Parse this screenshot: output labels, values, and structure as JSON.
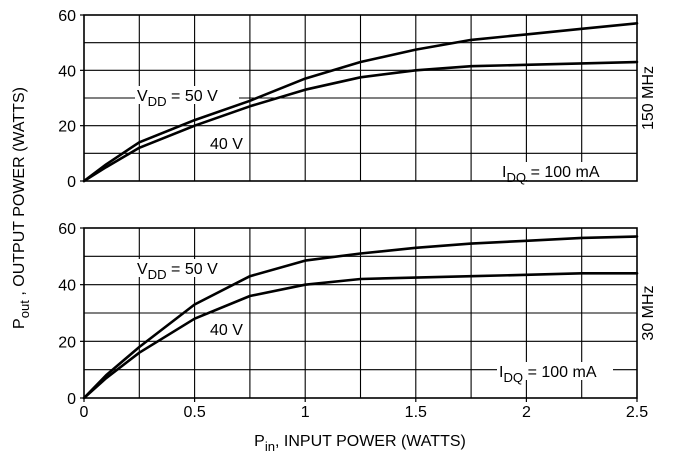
{
  "chart_data": [
    {
      "type": "line",
      "xlim": [
        0,
        2.5
      ],
      "ylim": [
        0,
        60
      ],
      "yticks": [
        "0",
        "20",
        "40",
        "60"
      ],
      "grid": true,
      "side_label": "150 MHz",
      "condition": {
        "main": "I",
        "sub": "DQ",
        "rest": " = 100 mA"
      },
      "series": [
        {
          "name": "V_DD = 50 V",
          "label": {
            "main": "V",
            "sub": "DD",
            "rest": " = 50 V"
          },
          "points": [
            [
              0,
              0
            ],
            [
              0.1,
              6
            ],
            [
              0.25,
              14
            ],
            [
              0.5,
              22
            ],
            [
              0.75,
              29
            ],
            [
              1,
              37
            ],
            [
              1.25,
              43
            ],
            [
              1.5,
              47.5
            ],
            [
              1.75,
              51
            ],
            [
              2,
              53
            ],
            [
              2.25,
              55
            ],
            [
              2.5,
              57
            ]
          ]
        },
        {
          "name": "40 V",
          "label": {
            "main": "40 V",
            "sub": "",
            "rest": ""
          },
          "points": [
            [
              0,
              0
            ],
            [
              0.1,
              5
            ],
            [
              0.25,
              12
            ],
            [
              0.5,
              20
            ],
            [
              0.75,
              27
            ],
            [
              1,
              33
            ],
            [
              1.25,
              37.5
            ],
            [
              1.5,
              40
            ],
            [
              1.75,
              41.5
            ],
            [
              2,
              42
            ],
            [
              2.25,
              42.5
            ],
            [
              2.5,
              43
            ]
          ]
        }
      ]
    },
    {
      "type": "line",
      "xlim": [
        0,
        2.5
      ],
      "ylim": [
        0,
        60
      ],
      "yticks": [
        "0",
        "20",
        "40",
        "60"
      ],
      "xticks": [
        "0",
        "0.5",
        "1",
        "1.5",
        "2",
        "2.5"
      ],
      "grid": true,
      "side_label": "30 MHz",
      "condition": {
        "main": "I",
        "sub": "DQ",
        "rest": " = 100 mA"
      },
      "series": [
        {
          "name": "V_DD = 50 V",
          "label": {
            "main": "V",
            "sub": "DD",
            "rest": " = 50 V"
          },
          "points": [
            [
              0,
              0
            ],
            [
              0.1,
              8
            ],
            [
              0.25,
              18
            ],
            [
              0.5,
              33
            ],
            [
              0.75,
              43
            ],
            [
              1,
              48.5
            ],
            [
              1.25,
              51
            ],
            [
              1.5,
              53
            ],
            [
              1.75,
              54.5
            ],
            [
              2,
              55.5
            ],
            [
              2.25,
              56.5
            ],
            [
              2.5,
              57
            ]
          ]
        },
        {
          "name": "40 V",
          "label": {
            "main": "40 V",
            "sub": "",
            "rest": ""
          },
          "points": [
            [
              0,
              0
            ],
            [
              0.1,
              7
            ],
            [
              0.25,
              16
            ],
            [
              0.5,
              28
            ],
            [
              0.75,
              36
            ],
            [
              1,
              40
            ],
            [
              1.25,
              42
            ],
            [
              1.5,
              42.5
            ],
            [
              1.75,
              43
            ],
            [
              2,
              43.5
            ],
            [
              2.25,
              44
            ],
            [
              2.5,
              44
            ]
          ]
        }
      ]
    }
  ],
  "ylabel": {
    "main": "P",
    "sub": "out",
    "rest": " , OUTPUT POWER (WATTS)"
  },
  "xlabel": {
    "main": "P",
    "sub": "in",
    "rest": ", INPUT POWER (WATTS)"
  }
}
